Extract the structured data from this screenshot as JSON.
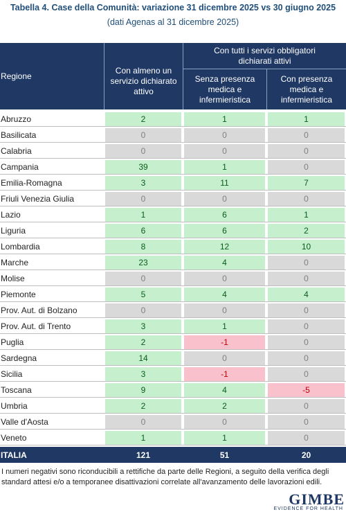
{
  "header": {
    "title": "Tabella 4. Case della Comunità: variazione 31 dicembre 2025 vs 30 giugno 2025",
    "subtitle": "(dati Agenas al 31 dicembre 2025)"
  },
  "table": {
    "columns": [
      "Regione",
      "Con almeno un servizio dichiarato attivo",
      "Senza presenza medica e infermieristica",
      "Con presenza medica e infermieristica"
    ],
    "group_header": "Con tutti i servizi obbligatori dichiarati attivi",
    "rows": [
      [
        "Abruzzo",
        2,
        1,
        1
      ],
      [
        "Basilicata",
        0,
        0,
        0
      ],
      [
        "Calabria",
        0,
        0,
        0
      ],
      [
        "Campania",
        39,
        1,
        0
      ],
      [
        "Emilia-Romagna",
        3,
        11,
        7
      ],
      [
        "Friuli Venezia Giulia",
        0,
        0,
        0
      ],
      [
        "Lazio",
        1,
        6,
        1
      ],
      [
        "Liguria",
        6,
        6,
        2
      ],
      [
        "Lombardia",
        8,
        12,
        10
      ],
      [
        "Marche",
        23,
        4,
        0
      ],
      [
        "Molise",
        0,
        0,
        0
      ],
      [
        "Piemonte",
        5,
        4,
        4
      ],
      [
        "Prov. Aut. di Bolzano",
        0,
        0,
        0
      ],
      [
        "Prov. Aut. di Trento",
        3,
        1,
        0
      ],
      [
        "Puglia",
        2,
        -1,
        0
      ],
      [
        "Sardegna",
        14,
        0,
        0
      ],
      [
        "Sicilia",
        3,
        -1,
        0
      ],
      [
        "Toscana",
        9,
        4,
        -5
      ],
      [
        "Umbria",
        2,
        2,
        0
      ],
      [
        "Valle d'Aosta",
        0,
        0,
        0
      ],
      [
        "Veneto",
        1,
        1,
        0
      ]
    ],
    "total": [
      "ITALIA",
      121,
      51,
      20
    ],
    "colors": {
      "positive": "#c6efce",
      "zero": "#d9d9d9",
      "negative": "#f8c1cb"
    }
  },
  "footnote": "I numeri negativi sono riconducibili a rettifiche da parte delle Regioni, a seguito della verifica degli standard attesi e/o a temporanee disattivazioni correlate all'avanzamento delle lavorazioni edili.",
  "logo": {
    "name": "GIMBE",
    "tagline": "EVIDENCE FOR HEALTH"
  }
}
